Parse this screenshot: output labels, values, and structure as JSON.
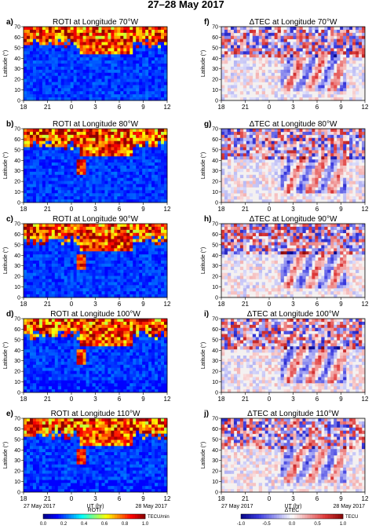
{
  "figure_title": "27–28 May 2017",
  "shared_x": {
    "ticks": [
      "18",
      "21",
      "0",
      "3",
      "6",
      "9",
      "12"
    ],
    "xlabel": "UT (hr)",
    "date_left": "27 May 2017",
    "date_right": "28 May 2017"
  },
  "shared_y": {
    "ticks": [
      "0",
      "10",
      "20",
      "30",
      "40",
      "50",
      "60",
      "70"
    ],
    "ylabel": "Latitude (°)",
    "ylim": [
      0,
      70
    ]
  },
  "panels": [
    {
      "letter": "a)",
      "title": "ROTI at Longitude 70°W",
      "kind": "roti"
    },
    {
      "letter": "b)",
      "title": "ROTI at Longitude 80°W",
      "kind": "roti"
    },
    {
      "letter": "c)",
      "title": "ROTI at Longitude 90°W",
      "kind": "roti"
    },
    {
      "letter": "d)",
      "title": "ROTI at Longitude 100°W",
      "kind": "roti"
    },
    {
      "letter": "e)",
      "title": "ROTI at Longitude 110°W",
      "kind": "roti"
    },
    {
      "letter": "f)",
      "title": "ΔTEC at Longitude 70°W",
      "kind": "dtec"
    },
    {
      "letter": "g)",
      "title": "ΔTEC at Longitude 80°W",
      "kind": "dtec"
    },
    {
      "letter": "h)",
      "title": "ΔTEC at Longitude 90°W",
      "kind": "dtec"
    },
    {
      "letter": "i)",
      "title": "ΔTEC at Longitude 100°W",
      "kind": "dtec"
    },
    {
      "letter": "j)",
      "title": "ΔTEC at Longitude 110°W",
      "kind": "dtec"
    }
  ],
  "colorbars": {
    "roti": {
      "label": "ROTI",
      "unit": "TECU/min",
      "ticks": [
        "0.0",
        "0.2",
        "0.4",
        "0.6",
        "0.8",
        "1.0"
      ],
      "range": [
        0,
        1
      ],
      "colors": [
        "#00008f",
        "#0000ff",
        "#0080ff",
        "#00ffff",
        "#80ff80",
        "#ffff00",
        "#ff8000",
        "#ff0000",
        "#8f0000"
      ]
    },
    "dtec": {
      "label": "ΔTEC",
      "unit": "TECU",
      "ticks": [
        "-1.0",
        "-0.5",
        "0.0",
        "0.5",
        "1.0"
      ],
      "range": [
        -1,
        1
      ],
      "colors": [
        "#0a0a8c",
        "#3a3adf",
        "#9a9af0",
        "#ffffff",
        "#f09a9a",
        "#df3a3a",
        "#8c0a0a"
      ]
    }
  },
  "chart_data": [
    {
      "type": "heatmap",
      "title": "ROTI at Longitude 70°W",
      "xlabel": "UT (hr)",
      "ylabel": "Latitude (°)",
      "x_ticks": [
        "18",
        "21",
        "0",
        "3",
        "6",
        "9",
        "12"
      ],
      "ylim": [
        0,
        70
      ],
      "value_range": [
        0,
        1
      ],
      "colorbar_label": "ROTI",
      "colorbar_unit": "TECU/min"
    },
    {
      "type": "heatmap",
      "title": "ROTI at Longitude 80°W",
      "xlabel": "UT (hr)",
      "ylabel": "Latitude (°)",
      "x_ticks": [
        "18",
        "21",
        "0",
        "3",
        "6",
        "9",
        "12"
      ],
      "ylim": [
        0,
        70
      ],
      "value_range": [
        0,
        1
      ]
    },
    {
      "type": "heatmap",
      "title": "ROTI at Longitude 90°W",
      "xlabel": "UT (hr)",
      "ylabel": "Latitude (°)",
      "x_ticks": [
        "18",
        "21",
        "0",
        "3",
        "6",
        "9",
        "12"
      ],
      "ylim": [
        0,
        70
      ],
      "value_range": [
        0,
        1
      ]
    },
    {
      "type": "heatmap",
      "title": "ROTI at Longitude 100°W",
      "xlabel": "UT (hr)",
      "ylabel": "Latitude (°)",
      "x_ticks": [
        "18",
        "21",
        "0",
        "3",
        "6",
        "9",
        "12"
      ],
      "ylim": [
        0,
        70
      ],
      "value_range": [
        0,
        1
      ]
    },
    {
      "type": "heatmap",
      "title": "ROTI at Longitude 110°W",
      "xlabel": "UT (hr)",
      "ylabel": "Latitude (°)",
      "x_ticks": [
        "18",
        "21",
        "0",
        "3",
        "6",
        "9",
        "12"
      ],
      "ylim": [
        0,
        70
      ],
      "value_range": [
        0,
        1
      ]
    },
    {
      "type": "heatmap",
      "title": "ΔTEC at Longitude 70°W",
      "xlabel": "UT (hr)",
      "ylabel": "Latitude (°)",
      "x_ticks": [
        "18",
        "21",
        "0",
        "3",
        "6",
        "9",
        "12"
      ],
      "ylim": [
        0,
        70
      ],
      "value_range": [
        -1,
        1
      ],
      "colorbar_label": "ΔTEC",
      "colorbar_unit": "TECU"
    },
    {
      "type": "heatmap",
      "title": "ΔTEC at Longitude 80°W",
      "xlabel": "UT (hr)",
      "ylabel": "Latitude (°)",
      "x_ticks": [
        "18",
        "21",
        "0",
        "3",
        "6",
        "9",
        "12"
      ],
      "ylim": [
        0,
        70
      ],
      "value_range": [
        -1,
        1
      ]
    },
    {
      "type": "heatmap",
      "title": "ΔTEC at Longitude 90°W",
      "xlabel": "UT (hr)",
      "ylabel": "Latitude (°)",
      "x_ticks": [
        "18",
        "21",
        "0",
        "3",
        "6",
        "9",
        "12"
      ],
      "ylim": [
        0,
        70
      ],
      "value_range": [
        -1,
        1
      ]
    },
    {
      "type": "heatmap",
      "title": "ΔTEC at Longitude 100°W",
      "xlabel": "UT (hr)",
      "ylabel": "Latitude (°)",
      "x_ticks": [
        "18",
        "21",
        "0",
        "3",
        "6",
        "9",
        "12"
      ],
      "ylim": [
        0,
        70
      ],
      "value_range": [
        -1,
        1
      ]
    },
    {
      "type": "heatmap",
      "title": "ΔTEC at Longitude 110°W",
      "xlabel": "UT (hr)",
      "ylabel": "Latitude (°)",
      "x_ticks": [
        "18",
        "21",
        "0",
        "3",
        "6",
        "9",
        "12"
      ],
      "ylim": [
        0,
        70
      ],
      "value_range": [
        -1,
        1
      ]
    }
  ]
}
